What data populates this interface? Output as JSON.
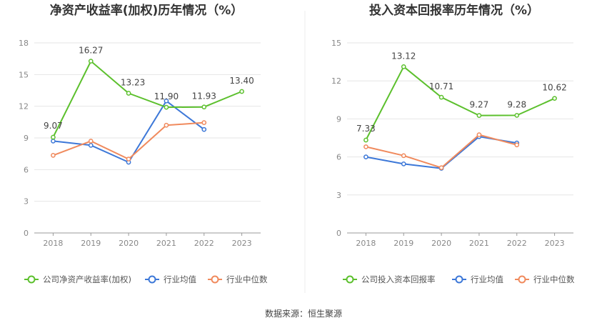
{
  "chart_data": [
    {
      "type": "line",
      "title": "净资产收益率(加权)历年情况（%）",
      "categories": [
        "2018",
        "2019",
        "2020",
        "2021",
        "2022",
        "2023"
      ],
      "ylim": [
        0,
        18
      ],
      "yticks": [
        0,
        3,
        6,
        9,
        12,
        15,
        18
      ],
      "ytick_labels": [
        "0",
        "3",
        "6",
        "9",
        "12",
        "15",
        "18"
      ],
      "grid": true,
      "legend": "bottom",
      "series": [
        {
          "name": "公司净资产收益率(加权)",
          "color": "#5cc02d",
          "values": [
            9.07,
            16.27,
            13.23,
            11.9,
            11.93,
            13.4
          ],
          "labels": [
            "9.07",
            "16.27",
            "13.23",
            "11.90",
            "11.93",
            "13.40"
          ]
        },
        {
          "name": "行业均值",
          "color": "#3d78d8",
          "values": [
            8.7,
            8.3,
            6.7,
            12.5,
            9.8,
            null
          ]
        },
        {
          "name": "行业中位数",
          "color": "#f08a5d",
          "values": [
            7.35,
            8.7,
            7.0,
            10.2,
            10.45,
            null
          ]
        }
      ]
    },
    {
      "type": "line",
      "title": "投入资本回报率历年情况（%）",
      "categories": [
        "2018",
        "2019",
        "2020",
        "2021",
        "2022",
        "2023"
      ],
      "ylim": [
        0,
        15
      ],
      "yticks": [
        0,
        3,
        6,
        9,
        12,
        15
      ],
      "ytick_labels": [
        "0",
        "3",
        "6",
        "9",
        "12",
        "15"
      ],
      "grid": true,
      "legend": "bottom",
      "series": [
        {
          "name": "公司投入资本回报率",
          "color": "#5cc02d",
          "values": [
            7.33,
            13.12,
            10.71,
            9.27,
            9.28,
            10.62
          ],
          "labels": [
            "7.33",
            "13.12",
            "10.71",
            "9.27",
            "9.28",
            "10.62"
          ]
        },
        {
          "name": "行业均值",
          "color": "#3d78d8",
          "values": [
            6.0,
            5.45,
            5.1,
            7.6,
            7.1,
            null
          ]
        },
        {
          "name": "行业中位数",
          "color": "#f08a5d",
          "values": [
            6.8,
            6.1,
            5.15,
            7.75,
            6.95,
            null
          ]
        }
      ]
    }
  ],
  "footer": {
    "source": "数据来源：恒生聚源"
  }
}
